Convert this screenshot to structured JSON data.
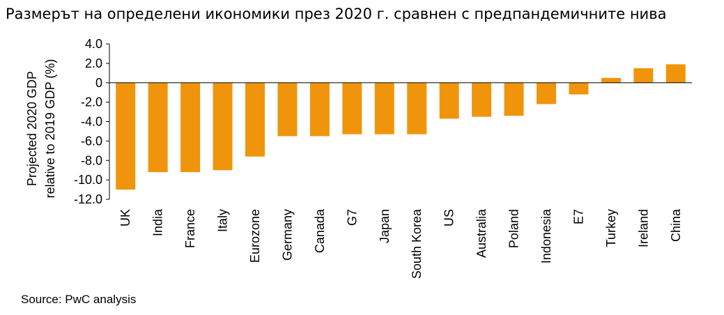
{
  "title": "Размерът на определени икономики през 2020 г. сравнен с предпандемичните нива",
  "source": "Source: PwC analysis",
  "colors": {
    "bar": "#F0950B",
    "axis": "#000000"
  },
  "chart_data": {
    "type": "bar",
    "title": "Размерът на определени икономики през 2020 г. сравнен с предпандемичните нива",
    "ylabel_lines": [
      "Projected 2020 GDP",
      "relative to 2019 GDP (%)"
    ],
    "ylim": [
      -12.0,
      4.0
    ],
    "yticks": [
      "4.0",
      "2.0",
      "0",
      "-2.0",
      "-4.0",
      "-6.0",
      "-8.0",
      "-10.0",
      "-12.0"
    ],
    "ytick_values": [
      4,
      2,
      0,
      -2,
      -4,
      -6,
      -8,
      -10,
      -12
    ],
    "categories": [
      "UK",
      "India",
      "France",
      "Italy",
      "Eurozone",
      "Germany",
      "Canada",
      "G7",
      "Japan",
      "South Korea",
      "US",
      "Australia",
      "Poland",
      "Indonesia",
      "E7",
      "Turkey",
      "Ireland",
      "China"
    ],
    "values": [
      -11.0,
      -9.2,
      -9.2,
      -9.0,
      -7.6,
      -5.5,
      -5.5,
      -5.3,
      -5.3,
      -5.3,
      -3.7,
      -3.5,
      -3.4,
      -2.2,
      -1.2,
      0.5,
      1.5,
      1.9
    ],
    "grid": false,
    "legend": "none"
  }
}
